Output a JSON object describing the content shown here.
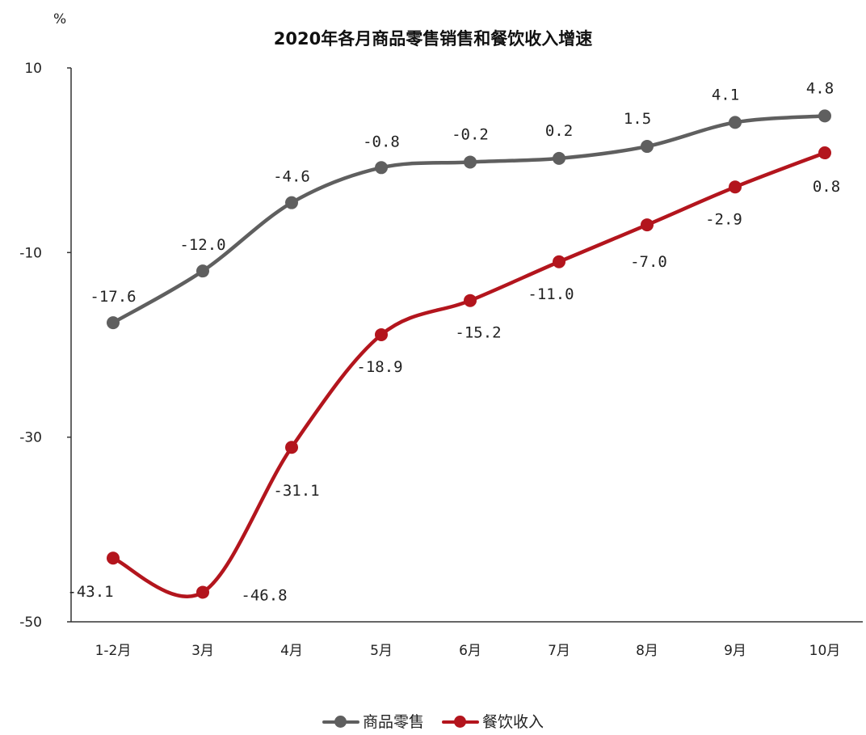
{
  "header": {
    "unit_label": "%",
    "title": "2020年各月商品零售销售和餐饮收入增速"
  },
  "colors": {
    "goods": "#5f5f5f",
    "catering": "#b3151d",
    "axis": "#333333"
  },
  "chart_data": {
    "type": "line",
    "title": "2020年各月商品零售销售和餐饮收入增速",
    "ylabel": "%",
    "xlabel": "",
    "categories": [
      "1-2月",
      "3月",
      "4月",
      "5月",
      "6月",
      "7月",
      "8月",
      "9月",
      "10月"
    ],
    "ylim": [
      -50,
      10
    ],
    "yticks": [
      "10",
      "-10",
      "-30",
      "-50"
    ],
    "grid": false,
    "legend_position": "bottom",
    "series": [
      {
        "name": "商品零售",
        "values": [
          -17.6,
          -12.0,
          -4.6,
          -0.8,
          -0.2,
          0.2,
          1.5,
          4.1,
          4.8
        ],
        "labels": [
          "-17.6",
          "-12.0",
          "-4.6",
          "-0.8",
          "-0.2",
          "0.2",
          "1.5",
          "4.1",
          "4.8"
        ]
      },
      {
        "name": "餐饮收入",
        "values": [
          -43.1,
          -46.8,
          -31.1,
          -18.9,
          -15.2,
          -11.0,
          -7.0,
          -2.9,
          0.8
        ],
        "labels": [
          "-43.1",
          "-46.8",
          "-31.1",
          "-18.9",
          "-15.2",
          "-11.0",
          "-7.0",
          "-2.9",
          "0.8"
        ]
      }
    ]
  }
}
